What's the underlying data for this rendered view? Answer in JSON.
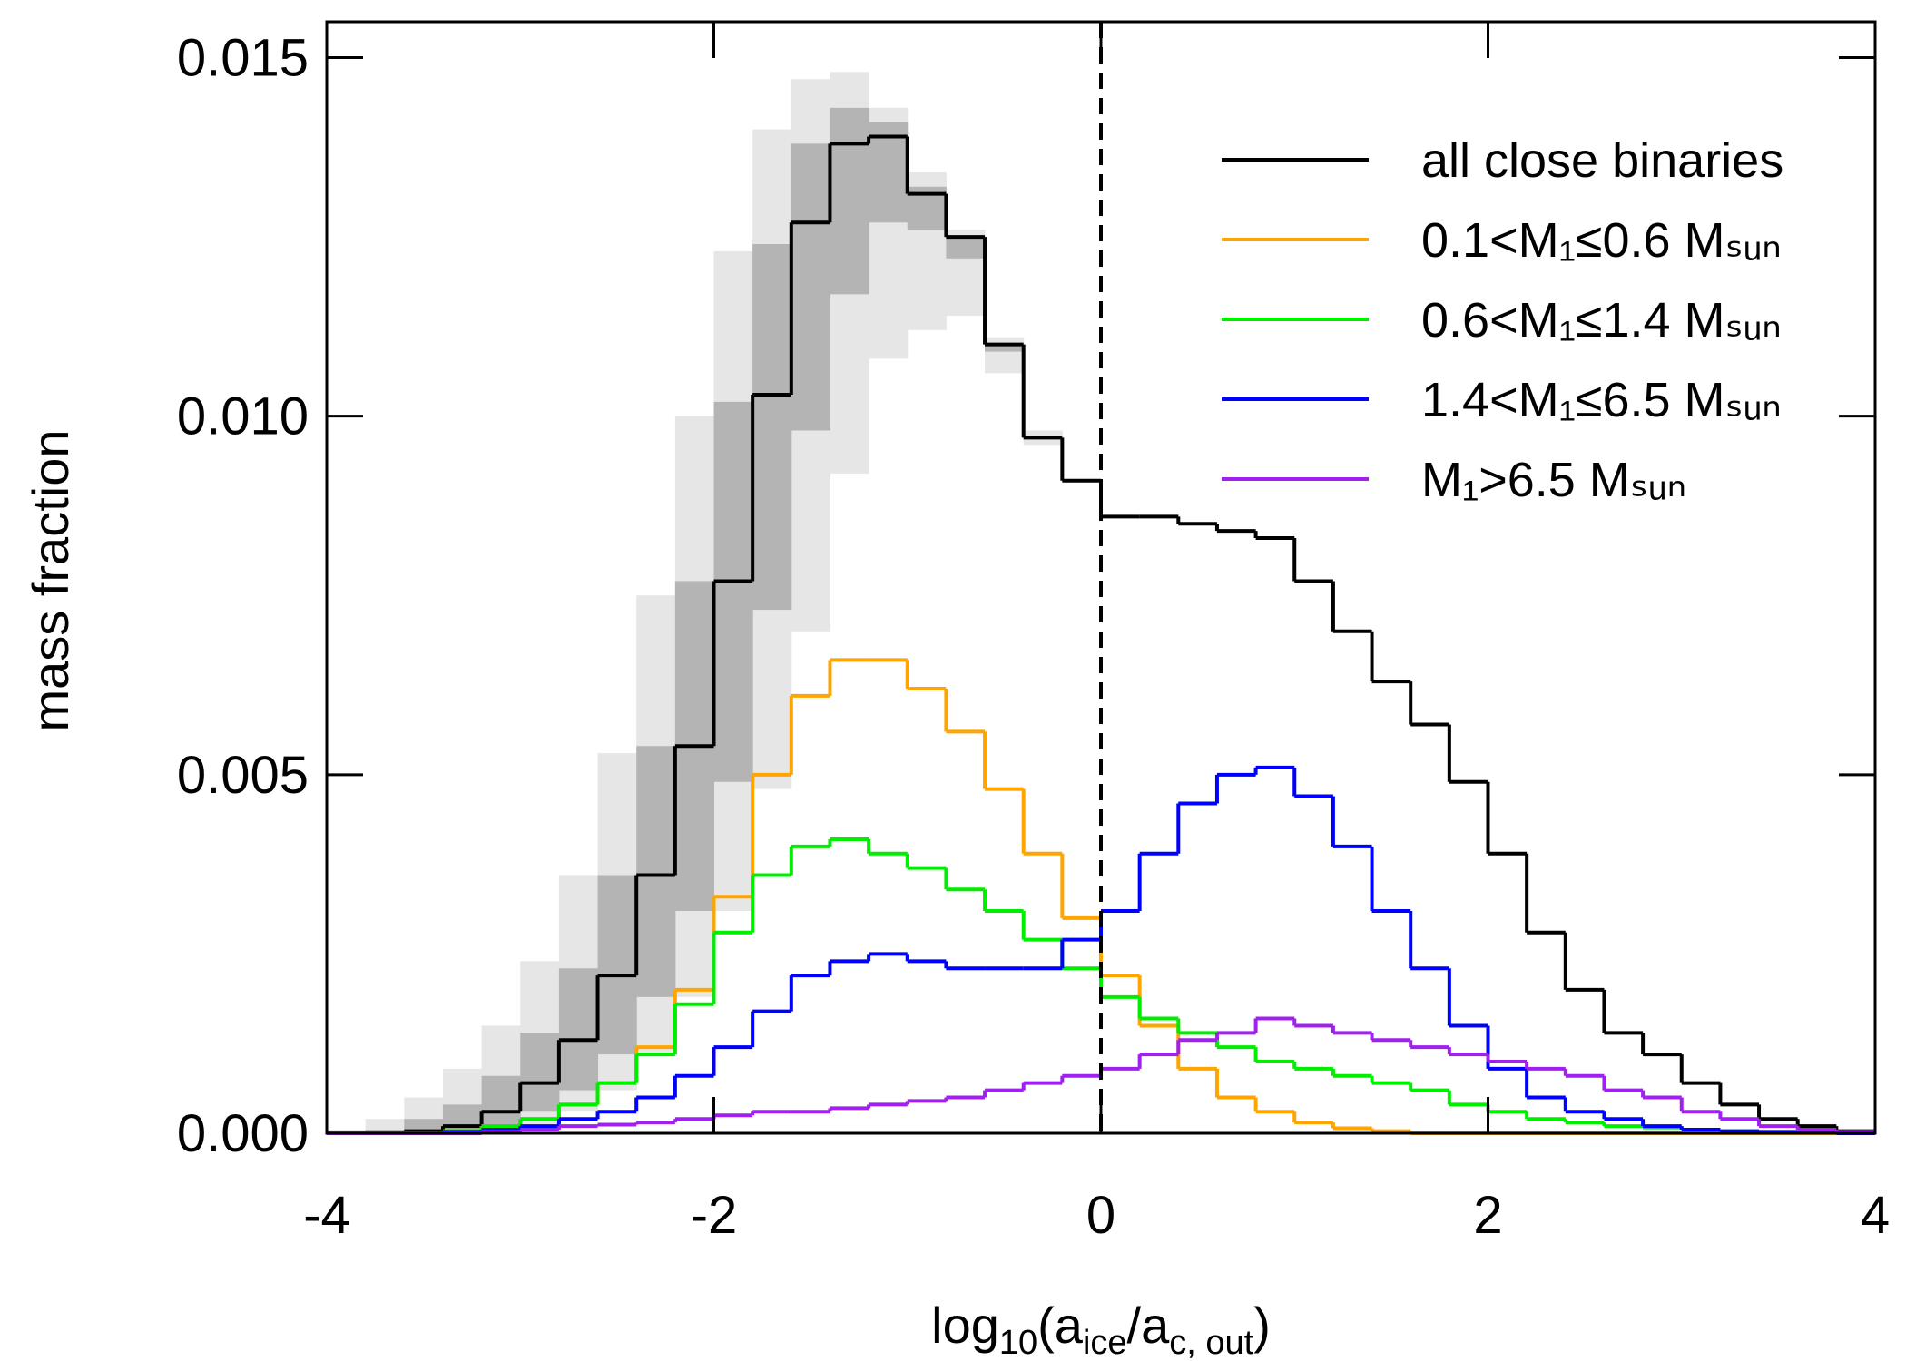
{
  "chart_data": {
    "type": "histogram",
    "ylabel": "mass fraction",
    "xlabel": [
      "log",
      "10",
      "(a",
      "ice",
      "/a",
      "c, out",
      ")"
    ],
    "bins": [
      -4,
      -3.8,
      -3.6,
      -3.4,
      -3.2,
      -3,
      -2.8,
      -2.6,
      -2.4,
      -2.2,
      -2,
      -1.8,
      -1.6,
      -1.4,
      -1.2,
      -1,
      -0.8,
      -0.6,
      -0.4,
      -0.2,
      0,
      0.2,
      0.4,
      0.6,
      0.8,
      1,
      1.2,
      1.4,
      1.6,
      1.8,
      2,
      2.2,
      2.4,
      2.6,
      2.8,
      3,
      3.2,
      3.4,
      3.6,
      3.8,
      4
    ],
    "xlim": [
      -4,
      4
    ],
    "ylim": [
      0,
      0.0155
    ],
    "xticks": [
      -4,
      -2,
      0,
      2,
      4
    ],
    "yticks": [
      {
        "value": 0,
        "label": "0.000"
      },
      {
        "value": 0.005,
        "label": "0.005"
      },
      {
        "value": 0.01,
        "label": "0.010"
      },
      {
        "value": 0.015,
        "label": "0.015"
      }
    ],
    "vline": 0,
    "legend": "upper right",
    "bands": [
      {
        "color": "#e6e6e6",
        "upper": [
          5e-05,
          0.0002,
          0.0005,
          0.0009,
          0.0015,
          0.0024,
          0.0036,
          0.0053,
          0.0075,
          0.01,
          0.0123,
          0.014,
          0.0147,
          0.0148,
          0.0143,
          0.0134,
          0.0126,
          0.0111,
          0.0098,
          0.0091,
          0.0086,
          0.0086,
          0.0085,
          0.0084,
          0.0083,
          0.0077,
          0.007,
          0.0063,
          0.0057,
          0.0049,
          0.0039,
          0.0028,
          0.002,
          0.0014,
          0.0011,
          0.0007,
          0.0004,
          0.0002,
          0.0001,
          3e-05
        ],
        "lower": [
          0,
          0,
          0,
          0,
          3e-05,
          0.0001,
          0.0003,
          0.0006,
          0.0011,
          0.0019,
          0.0031,
          0.0048,
          0.007,
          0.0092,
          0.0108,
          0.0112,
          0.0114,
          0.0106,
          0.0096,
          0.0091,
          0.0086,
          0.0086,
          0.0085,
          0.0084,
          0.0083,
          0.0077,
          0.007,
          0.0063,
          0.0057,
          0.0049,
          0.0039,
          0.0028,
          0.002,
          0.0014,
          0.0011,
          0.0007,
          0.0004,
          0.0002,
          0.0001,
          3e-05
        ]
      },
      {
        "color": "#b4b4b4",
        "upper": [
          0,
          5e-05,
          0.0002,
          0.0004,
          0.0008,
          0.0014,
          0.0023,
          0.0036,
          0.0054,
          0.0077,
          0.0102,
          0.0124,
          0.0138,
          0.0143,
          0.0141,
          0.0132,
          0.0125,
          0.011,
          0.0097,
          0.0091,
          0.0086,
          0.0086,
          0.0085,
          0.0084,
          0.0083,
          0.0077,
          0.007,
          0.0063,
          0.0057,
          0.0049,
          0.0039,
          0.0028,
          0.002,
          0.0014,
          0.0011,
          0.0007,
          0.0004,
          0.0002,
          0.0001,
          3e-05
        ],
        "lower": [
          0,
          0,
          0,
          3e-05,
          0.0001,
          0.0003,
          0.0006,
          0.0011,
          0.0019,
          0.0031,
          0.0049,
          0.0073,
          0.0098,
          0.0117,
          0.0127,
          0.0126,
          0.0122,
          0.0109,
          0.0097,
          0.0091,
          0.0086,
          0.0086,
          0.0085,
          0.0084,
          0.0083,
          0.0077,
          0.007,
          0.0063,
          0.0057,
          0.0049,
          0.0039,
          0.0028,
          0.002,
          0.0014,
          0.0011,
          0.0007,
          0.0004,
          0.0002,
          0.0001,
          3e-05
        ]
      }
    ],
    "series": [
      {
        "name": "all close binaries",
        "color": "#000000",
        "values": [
          0,
          0,
          3e-05,
          0.0001,
          0.0003,
          0.0007,
          0.0013,
          0.0022,
          0.0036,
          0.0054,
          0.0077,
          0.0103,
          0.0127,
          0.0138,
          0.0139,
          0.0131,
          0.0125,
          0.011,
          0.0097,
          0.0091,
          0.0086,
          0.0086,
          0.0085,
          0.0084,
          0.0083,
          0.0077,
          0.007,
          0.0063,
          0.0057,
          0.0049,
          0.0039,
          0.0028,
          0.002,
          0.0014,
          0.0011,
          0.0007,
          0.0004,
          0.0002,
          0.0001,
          3e-05
        ]
      },
      {
        "name": "0.1<M₁≤0.6 Mₛᵤₙ",
        "color": "#ffa500",
        "values": [
          0,
          0,
          0,
          3e-05,
          0.0001,
          0.0002,
          0.0004,
          0.0007,
          0.0012,
          0.002,
          0.0033,
          0.005,
          0.0061,
          0.0066,
          0.0066,
          0.0062,
          0.0056,
          0.0048,
          0.0039,
          0.003,
          0.0022,
          0.0015,
          0.0009,
          0.0005,
          0.0003,
          0.00015,
          7e-05,
          3e-05,
          0,
          0,
          0,
          0,
          0,
          0,
          0,
          0,
          0,
          0,
          0,
          0
        ]
      },
      {
        "name": "0.6<M₁≤1.4 Mₛᵤₙ",
        "color": "#00ee00",
        "values": [
          0,
          0,
          0,
          3e-05,
          0.0001,
          0.0002,
          0.0004,
          0.0007,
          0.0011,
          0.0018,
          0.0028,
          0.0036,
          0.004,
          0.0041,
          0.0039,
          0.0037,
          0.0034,
          0.0031,
          0.0027,
          0.0023,
          0.0019,
          0.0016,
          0.0014,
          0.0012,
          0.001,
          0.0009,
          0.0008,
          0.0007,
          0.0006,
          0.0004,
          0.0003,
          0.0002,
          0.00015,
          0.0001,
          8e-05,
          5e-05,
          3e-05,
          2e-05,
          1e-05,
          0
        ]
      },
      {
        "name": "1.4<M₁≤6.5 Mₛᵤₙ",
        "color": "#0000ff",
        "values": [
          0,
          0,
          0,
          2e-05,
          5e-05,
          0.0001,
          0.0002,
          0.0003,
          0.0005,
          0.0008,
          0.0012,
          0.0017,
          0.0022,
          0.0024,
          0.0025,
          0.0024,
          0.0023,
          0.0023,
          0.0023,
          0.0027,
          0.0031,
          0.0039,
          0.0046,
          0.005,
          0.0051,
          0.0047,
          0.004,
          0.0031,
          0.0023,
          0.0015,
          0.0009,
          0.0005,
          0.0003,
          0.0002,
          0.0001,
          5e-05,
          3e-05,
          2e-05,
          1e-05,
          0
        ]
      },
      {
        "name": "M₁>6.5 Mₛᵤₙ",
        "color": "#a020f0",
        "values": [
          0,
          0,
          0,
          0,
          2e-05,
          5e-05,
          0.0001,
          0.00012,
          0.00015,
          0.0002,
          0.00025,
          0.0003,
          0.0003,
          0.00035,
          0.0004,
          0.00045,
          0.0005,
          0.0006,
          0.0007,
          0.0008,
          0.0009,
          0.0011,
          0.0013,
          0.0014,
          0.0016,
          0.0015,
          0.0014,
          0.0013,
          0.0012,
          0.0011,
          0.001,
          0.0009,
          0.0008,
          0.0006,
          0.0005,
          0.0003,
          0.0002,
          0.0001,
          5e-05,
          2e-05
        ]
      }
    ]
  }
}
